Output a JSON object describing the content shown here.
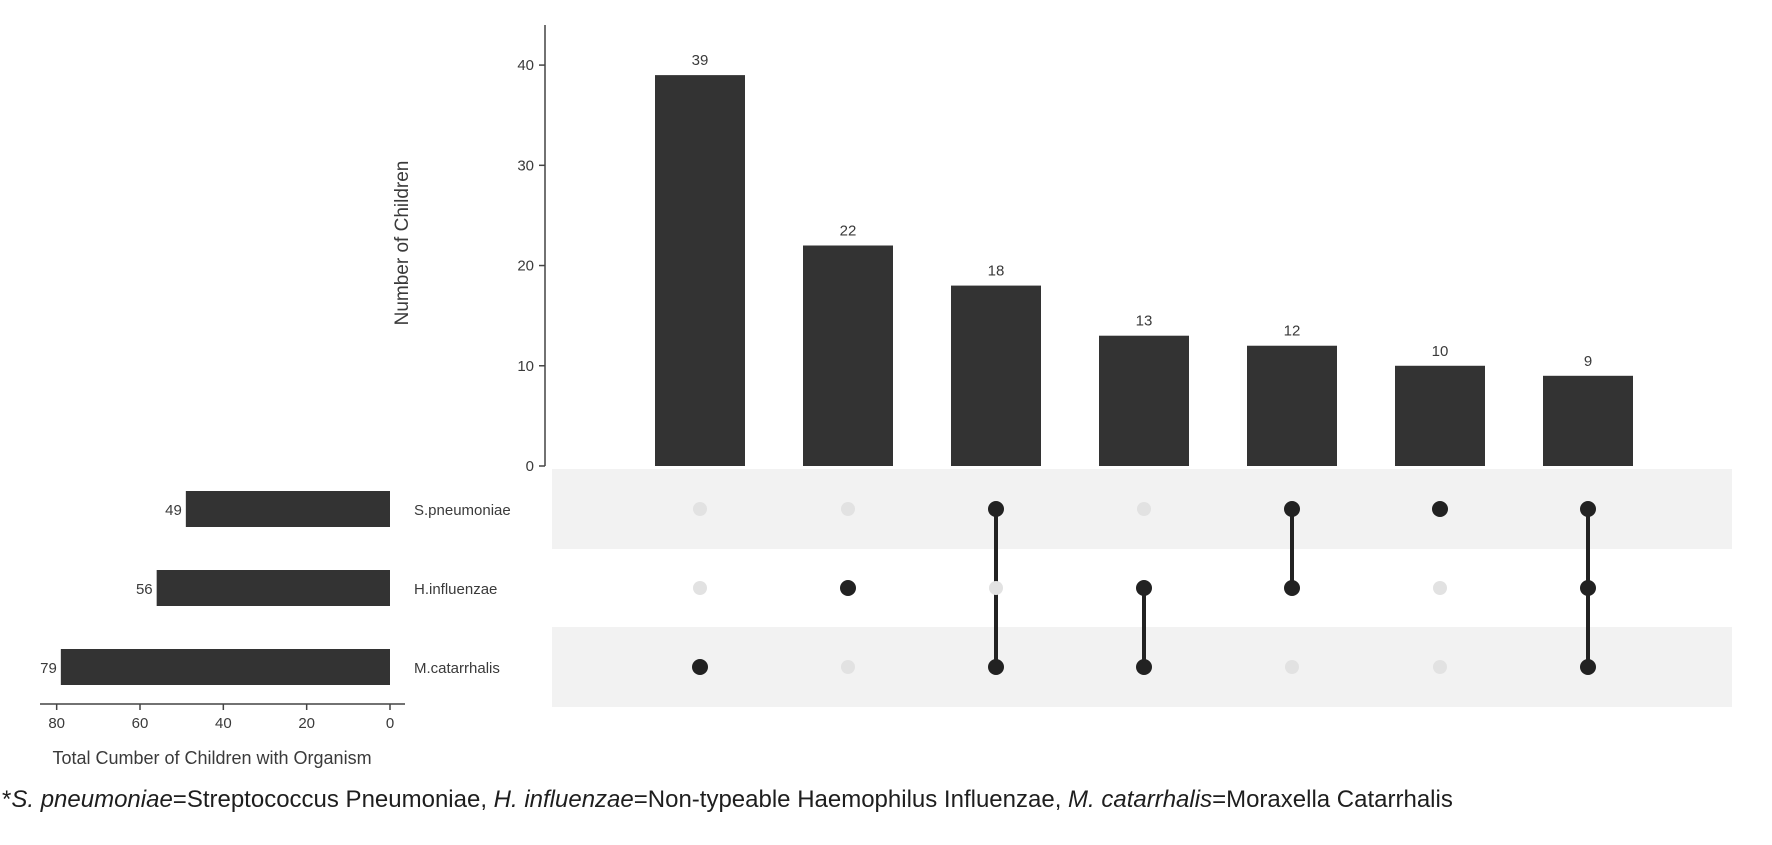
{
  "chart_data": {
    "type": "bar",
    "title": "",
    "ylabel": "Number of Children",
    "ylim": [
      0,
      44
    ],
    "y_ticks": [
      0,
      10,
      20,
      30,
      40
    ],
    "bar_color": "#333333",
    "dot_active_color": "#222222",
    "dot_inactive_color": "#e2e2e2",
    "stripe_color": "#f2f2f2",
    "intersections": [
      {
        "value": 39,
        "label": "39",
        "members": [
          false,
          false,
          true
        ]
      },
      {
        "value": 22,
        "label": "22",
        "members": [
          false,
          true,
          false
        ]
      },
      {
        "value": 18,
        "label": "18",
        "members": [
          true,
          false,
          true
        ]
      },
      {
        "value": 13,
        "label": "13",
        "members": [
          false,
          true,
          true
        ]
      },
      {
        "value": 12,
        "label": "12",
        "members": [
          true,
          true,
          false
        ]
      },
      {
        "value": 10,
        "label": "10",
        "members": [
          true,
          false,
          false
        ]
      },
      {
        "value": 9,
        "label": "9",
        "members": [
          true,
          true,
          true
        ]
      }
    ],
    "sets": [
      {
        "name": "S.pneumoniae",
        "total": 49,
        "total_label": "49"
      },
      {
        "name": "H.influenzae",
        "total": 56,
        "total_label": "56"
      },
      {
        "name": "M.catarrhalis",
        "total": 79,
        "total_label": "79"
      }
    ],
    "set_size_axis": {
      "xlabel": "Total Cumber of Children with Organism",
      "xlim": [
        0,
        84
      ],
      "ticks": [
        80,
        60,
        40,
        20,
        0
      ]
    }
  },
  "footnote": {
    "parts": [
      {
        "text": "*",
        "italic": false
      },
      {
        "text": "S. pneumoniae",
        "italic": true
      },
      {
        "text": "=Streptococcus Pneumoniae, ",
        "italic": false
      },
      {
        "text": "H. influenzae",
        "italic": true
      },
      {
        "text": "=Non-typeable Haemophilus Influenzae, ",
        "italic": false
      },
      {
        "text": "M. catarrhalis",
        "italic": true
      },
      {
        "text": "=Moraxella Catarrhalis",
        "italic": false
      }
    ]
  }
}
